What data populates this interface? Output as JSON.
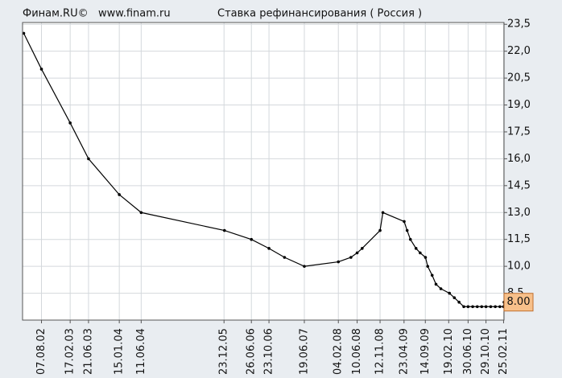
{
  "header": {
    "brand": "Финам.RU©",
    "site": "www.finam.ru"
  },
  "chart_data": {
    "type": "line",
    "title": "Ставка рефинансирования ( Россия )",
    "x": [
      "09.04.02",
      "07.08.02",
      "17.02.03",
      "21.06.03",
      "15.01.04",
      "11.06.04",
      "26.12.05",
      "26.06.06",
      "23.10.06",
      "05.02.07",
      "19.06.07",
      "04.02.08",
      "29.04.08",
      "10.06.08",
      "14.07.08",
      "12.11.08",
      "01.12.08",
      "24.04.09",
      "14.05.09",
      "05.06.09",
      "13.07.09",
      "10.08.09",
      "15.09.09",
      "30.09.09",
      "30.10.09",
      "25.11.09",
      "28.12.09",
      "24.02.10",
      "29.03.10",
      "30.04.10",
      "01.06.10",
      "30.06.10",
      "31.07.10",
      "31.08.10",
      "30.09.10",
      "29.10.10",
      "30.11.10",
      "31.12.10",
      "31.01.11",
      "25.02.11",
      "28.02.11"
    ],
    "series": [
      {
        "name": "Ставка рефинансирования",
        "color": "#000000",
        "values": [
          23,
          21,
          18,
          16,
          14,
          13,
          12,
          11.5,
          11,
          10.5,
          10,
          10.25,
          10.5,
          10.75,
          11,
          12,
          13,
          12.5,
          12,
          11.5,
          11,
          10.75,
          10.5,
          10,
          9.5,
          9,
          8.75,
          8.5,
          8.25,
          8,
          7.75,
          7.75,
          7.75,
          7.75,
          7.75,
          7.75,
          7.75,
          7.75,
          7.75,
          7.75,
          8
        ],
        "value_labels": [
          null,
          null,
          null,
          null,
          null,
          null,
          null,
          null,
          null,
          null,
          null,
          null,
          null,
          null,
          null,
          null,
          null,
          null,
          null,
          null,
          null,
          null,
          null,
          null,
          null,
          null,
          null,
          null,
          null,
          null,
          null,
          null,
          null,
          null,
          null,
          null,
          null,
          null,
          null,
          null,
          "8.00"
        ]
      }
    ],
    "xlim": [
      "01.04.02",
      "28.02.11"
    ],
    "xticks": [
      "07.08.02",
      "17.02.03",
      "21.06.03",
      "15.01.04",
      "11.06.04",
      "23.12.05",
      "26.06.06",
      "23.10.06",
      "19.06.07",
      "04.02.08",
      "10.06.08",
      "12.11.08",
      "23.04.09",
      "14.09.09",
      "19.02.10",
      "30.06.10",
      "29.10.10",
      "25.02.11"
    ],
    "ylim": [
      7,
      23.6
    ],
    "yticks": [
      {
        "value": 8.5,
        "label": "8,5"
      },
      {
        "value": 10,
        "label": "10,0"
      },
      {
        "value": 11.5,
        "label": "11,5"
      },
      {
        "value": 13,
        "label": "13,0"
      },
      {
        "value": 14.5,
        "label": "14,5"
      },
      {
        "value": 16,
        "label": "16,0"
      },
      {
        "value": 17.5,
        "label": "17,5"
      },
      {
        "value": 19,
        "label": "19,0"
      },
      {
        "value": 20.5,
        "label": "20,5"
      },
      {
        "value": 22,
        "label": "22,0"
      },
      {
        "value": 23.5,
        "label": "23,5"
      }
    ],
    "grid": true
  }
}
